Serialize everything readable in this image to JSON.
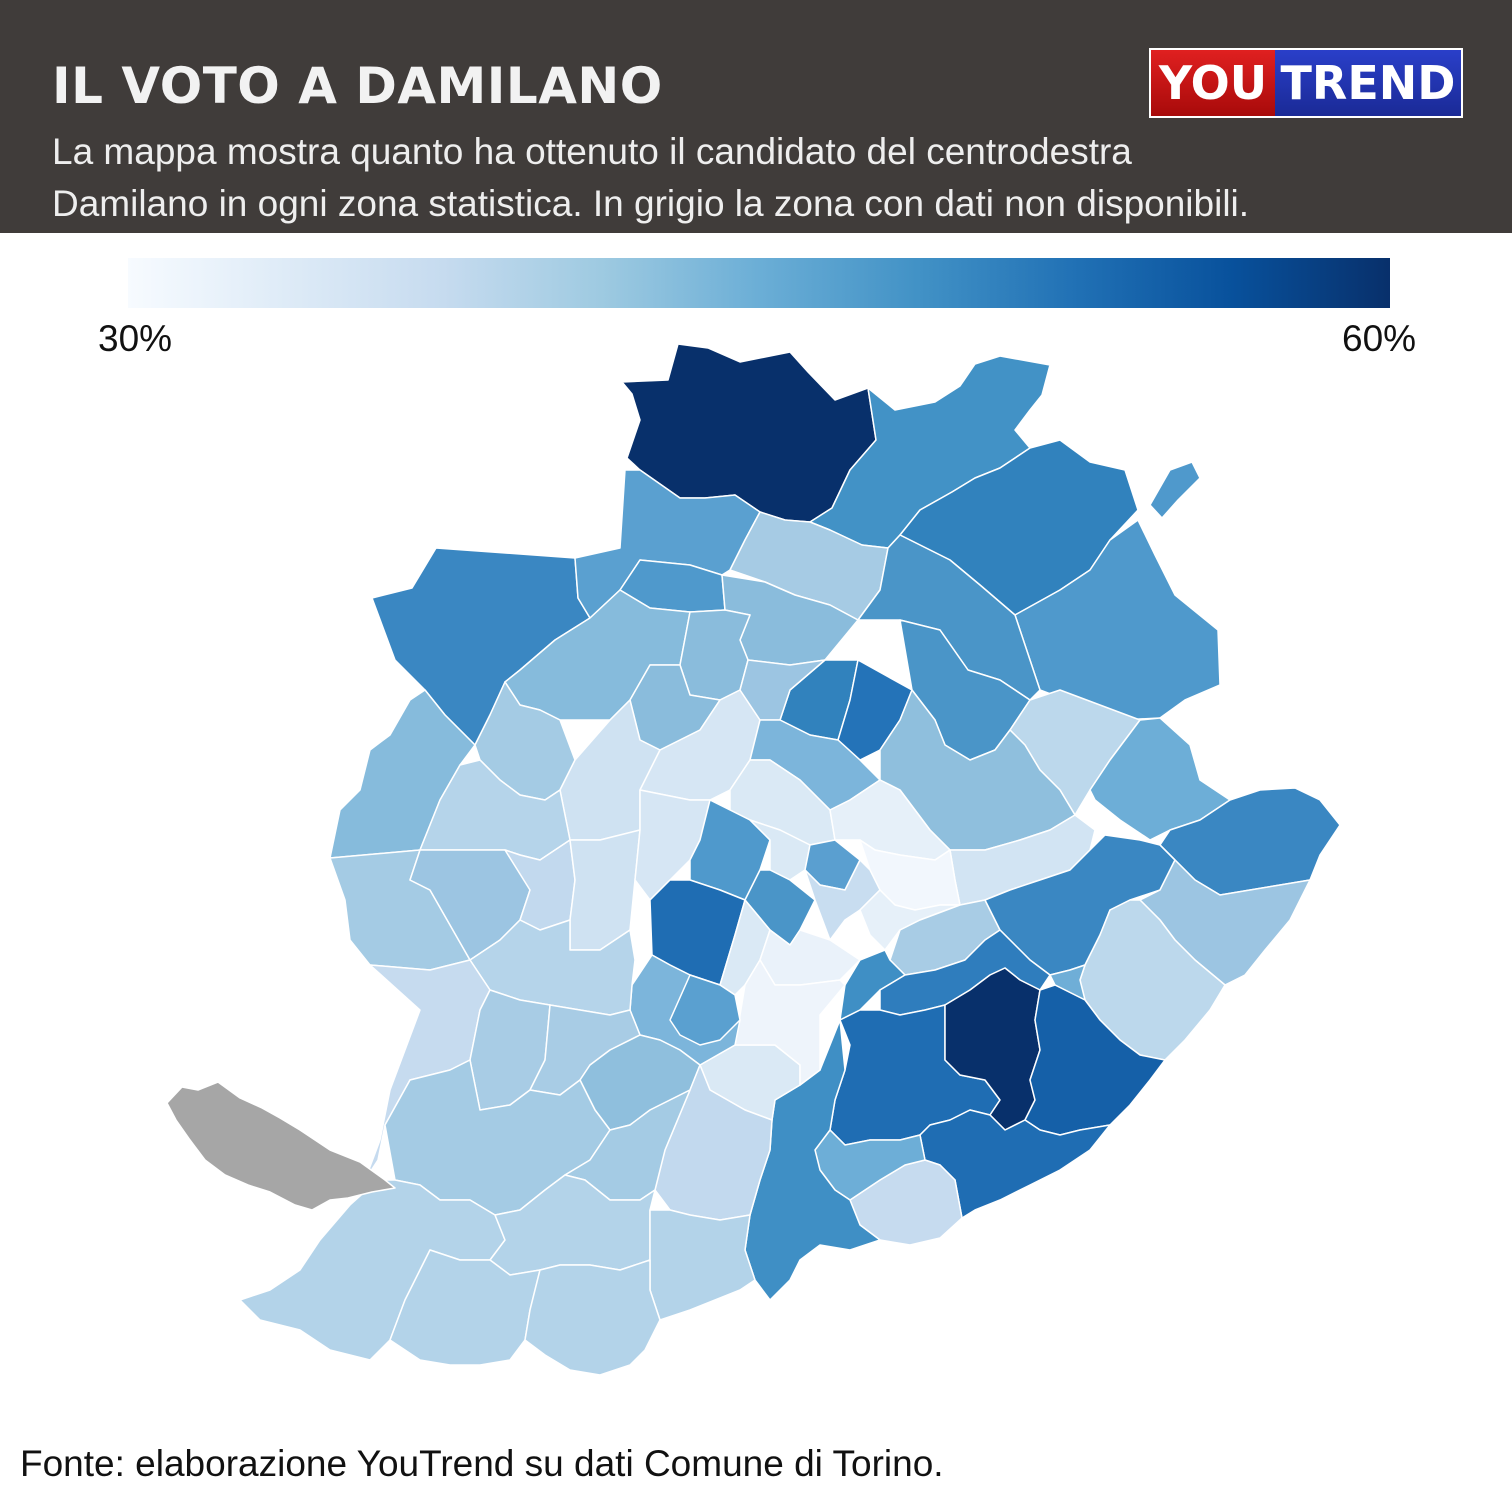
{
  "header": {
    "title": "IL VOTO A DAMILANO",
    "subtitle_line1": "La mappa mostra quanto ha ottenuto il candidato del centrodestra",
    "subtitle_line2": "Damilano in ogni zona statistica. In grigio la zona con dati non disponibili.",
    "background_color": "#403c3a"
  },
  "logo": {
    "part1": "YOU",
    "part2": "TREND",
    "color1": "#c8141a",
    "color2": "#2233b8"
  },
  "legend": {
    "min_label": "30%",
    "max_label": "60%",
    "min_value": 30,
    "max_value": 60,
    "color_low": "#f7fbff",
    "color_high": "#08306b"
  },
  "map": {
    "region": "Torino",
    "no_data_color": "#a6a6a6"
  },
  "footer": {
    "source": "Fonte: elaborazione YouTrend su dati Comune di Torino."
  }
}
